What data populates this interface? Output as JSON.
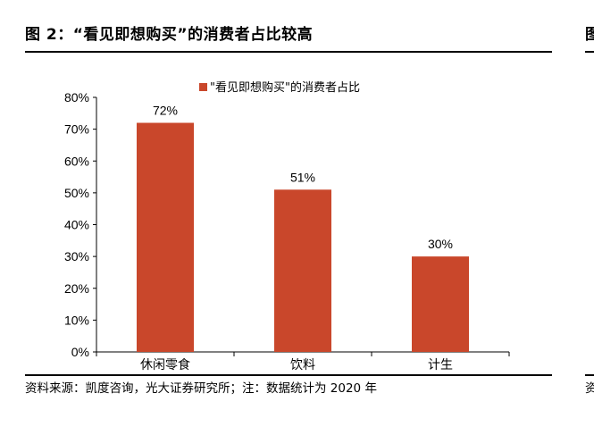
{
  "figure": {
    "title": "图 2：“看见即想购买”的消费者占比较高",
    "title_right_fragment": "图",
    "source": "资料来源：凯度咨询，光大证券研究所；注：数据统计为 2020 年",
    "source_right_fragment": "资"
  },
  "chart_data": {
    "type": "bar",
    "categories": [
      "休闲零食",
      "饮料",
      "计生"
    ],
    "series": [
      {
        "name": "\"看见即想购买\"的消费者占比",
        "values": [
          72,
          51,
          30
        ],
        "color": "#C9472B"
      }
    ],
    "data_labels": [
      "72%",
      "51%",
      "30%"
    ],
    "yticks": [
      "0%",
      "10%",
      "20%",
      "30%",
      "40%",
      "50%",
      "60%",
      "70%",
      "80%"
    ],
    "ylim": [
      0,
      80
    ],
    "xlabel": "",
    "ylabel": "",
    "grid": false,
    "legend_position": "top-center"
  }
}
